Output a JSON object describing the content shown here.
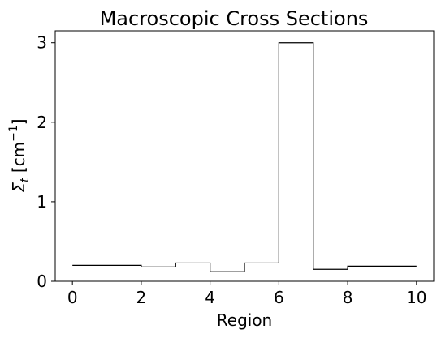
{
  "chart_data": {
    "type": "line",
    "title": "Macroscopic Cross Sections",
    "xlabel": "Region",
    "ylabel_main": "Σ",
    "ylabel_sub": "t",
    "ylabel_unit_open": " [cm",
    "ylabel_unit_sup": "−1",
    "ylabel_unit_close": "]",
    "xlim": [
      -0.5,
      10.5
    ],
    "ylim": [
      0,
      3.15
    ],
    "xticks": [
      0,
      2,
      4,
      6,
      8,
      10
    ],
    "xtick_labels": [
      "0",
      "2",
      "4",
      "6",
      "8",
      "10"
    ],
    "yticks": [
      0,
      1,
      2,
      3
    ],
    "ytick_labels": [
      "0",
      "1",
      "2",
      "3"
    ],
    "grid": false,
    "series": [
      {
        "step": "post",
        "x": [
          0,
          1,
          2,
          3,
          4,
          5,
          6,
          7,
          8,
          9,
          10
        ],
        "values": [
          0.2,
          0.2,
          0.18,
          0.23,
          0.12,
          0.23,
          3.0,
          0.15,
          0.19,
          0.19,
          0.19
        ],
        "color": "#000000"
      }
    ]
  }
}
